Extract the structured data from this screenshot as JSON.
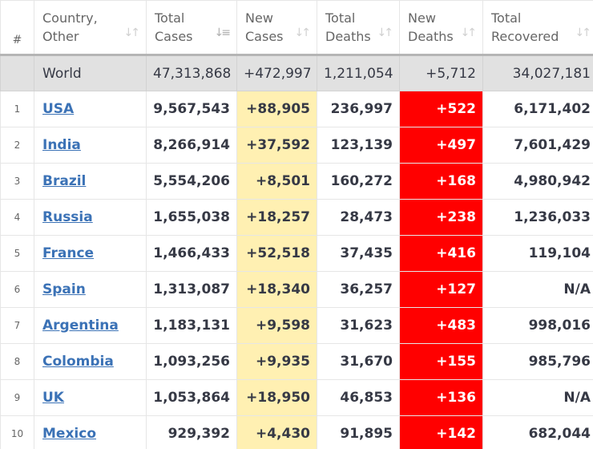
{
  "headers": {
    "hash": "#",
    "country": [
      "Country,",
      "Other"
    ],
    "total_cases": [
      "Total",
      "Cases"
    ],
    "new_cases": [
      "New",
      "Cases"
    ],
    "total_deaths": [
      "Total",
      "Deaths"
    ],
    "new_deaths": [
      "New",
      "Deaths"
    ],
    "total_recovered": [
      "Total",
      "Recovered"
    ],
    "sort_glyph": "↓↑",
    "sort_active_glyph": "↓⃪"
  },
  "world": {
    "name": "World",
    "total_cases": "47,313,868",
    "new_cases": "+472,997",
    "total_deaths": "1,211,054",
    "new_deaths": "+5,712",
    "total_recovered": "34,027,181"
  },
  "rows": [
    {
      "rank": "1",
      "country": "USA",
      "total_cases": "9,567,543",
      "new_cases": "+88,905",
      "total_deaths": "236,997",
      "new_deaths": "+522",
      "total_recovered": "6,171,402"
    },
    {
      "rank": "2",
      "country": "India",
      "total_cases": "8,266,914",
      "new_cases": "+37,592",
      "total_deaths": "123,139",
      "new_deaths": "+497",
      "total_recovered": "7,601,429"
    },
    {
      "rank": "3",
      "country": "Brazil",
      "total_cases": "5,554,206",
      "new_cases": "+8,501",
      "total_deaths": "160,272",
      "new_deaths": "+168",
      "total_recovered": "4,980,942"
    },
    {
      "rank": "4",
      "country": "Russia",
      "total_cases": "1,655,038",
      "new_cases": "+18,257",
      "total_deaths": "28,473",
      "new_deaths": "+238",
      "total_recovered": "1,236,033"
    },
    {
      "rank": "5",
      "country": "France",
      "total_cases": "1,466,433",
      "new_cases": "+52,518",
      "total_deaths": "37,435",
      "new_deaths": "+416",
      "total_recovered": "119,104"
    },
    {
      "rank": "6",
      "country": "Spain",
      "total_cases": "1,313,087",
      "new_cases": "+18,340",
      "total_deaths": "36,257",
      "new_deaths": "+127",
      "total_recovered": "N/A"
    },
    {
      "rank": "7",
      "country": "Argentina",
      "total_cases": "1,183,131",
      "new_cases": "+9,598",
      "total_deaths": "31,623",
      "new_deaths": "+483",
      "total_recovered": "998,016"
    },
    {
      "rank": "8",
      "country": "Colombia",
      "total_cases": "1,093,256",
      "new_cases": "+9,935",
      "total_deaths": "31,670",
      "new_deaths": "+155",
      "total_recovered": "985,796"
    },
    {
      "rank": "9",
      "country": "UK",
      "total_cases": "1,053,864",
      "new_cases": "+18,950",
      "total_deaths": "46,853",
      "new_deaths": "+136",
      "total_recovered": "N/A"
    },
    {
      "rank": "10",
      "country": "Mexico",
      "total_cases": "929,392",
      "new_cases": "+4,430",
      "total_deaths": "91,895",
      "new_deaths": "+142",
      "total_recovered": "682,044"
    }
  ],
  "colors": {
    "new_cases_bg": "#fff0b2",
    "new_deaths_bg": "#ff0000",
    "world_row_bg": "#e1e1e1",
    "link": "#3b72b6"
  }
}
